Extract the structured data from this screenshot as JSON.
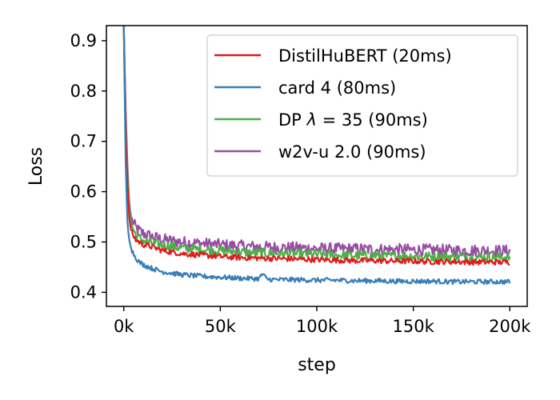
{
  "chart_data": {
    "type": "line",
    "xlabel": "step",
    "ylabel": "Loss",
    "xlim": [
      -9,
      209
    ],
    "ylim": [
      0.372,
      0.93
    ],
    "x_ticks": [
      0,
      50,
      100,
      150,
      200
    ],
    "x_tick_labels": [
      "0k",
      "50k",
      "100k",
      "150k",
      "200k"
    ],
    "y_ticks": [
      0.4,
      0.5,
      0.6,
      0.7,
      0.8,
      0.9
    ],
    "y_tick_labels": [
      "0.4",
      "0.5",
      "0.6",
      "0.7",
      "0.8",
      "0.9"
    ],
    "grid": false,
    "legend_position": "top-right",
    "legend_text_parts": [
      [
        {
          "t": "DistilHuBERT (20ms)",
          "i": false
        }
      ],
      [
        {
          "t": "card 4 (80ms)",
          "i": false
        }
      ],
      [
        {
          "t": "DP ",
          "i": false
        },
        {
          "t": "λ",
          "i": true
        },
        {
          "t": " = 35 (90ms)",
          "i": false
        }
      ],
      [
        {
          "t": "w2v-u 2.0 (90ms)",
          "i": false
        }
      ]
    ],
    "series": [
      {
        "name": "DistilHuBERT (20ms)",
        "color": "#e41a1c",
        "x": [
          0,
          1,
          2,
          3,
          4,
          6,
          8,
          10,
          15,
          20,
          25,
          30,
          40,
          50,
          60,
          70,
          80,
          90,
          100,
          110,
          120,
          130,
          140,
          150,
          160,
          170,
          180,
          190,
          200
        ],
        "y": [
          0.93,
          0.72,
          0.6,
          0.54,
          0.52,
          0.505,
          0.5,
          0.495,
          0.49,
          0.483,
          0.48,
          0.477,
          0.474,
          0.471,
          0.469,
          0.468,
          0.467,
          0.466,
          0.465,
          0.464,
          0.463,
          0.463,
          0.462,
          0.462,
          0.461,
          0.461,
          0.46,
          0.46,
          0.46
        ]
      },
      {
        "name": "card 4 (80ms)",
        "color": "#377eb8",
        "x": [
          0,
          1,
          2,
          3,
          4,
          6,
          8,
          10,
          15,
          20,
          25,
          30,
          40,
          50,
          60,
          70,
          72,
          74,
          80,
          90,
          100,
          110,
          120,
          130,
          140,
          150,
          160,
          170,
          180,
          190,
          200
        ],
        "y": [
          0.93,
          0.65,
          0.53,
          0.5,
          0.485,
          0.47,
          0.46,
          0.455,
          0.447,
          0.441,
          0.438,
          0.435,
          0.432,
          0.43,
          0.428,
          0.427,
          0.437,
          0.426,
          0.425,
          0.425,
          0.424,
          0.424,
          0.423,
          0.423,
          0.422,
          0.422,
          0.422,
          0.421,
          0.421,
          0.421,
          0.421
        ]
      },
      {
        "name": "DP λ = 35 (90ms)",
        "color": "#4daf4a",
        "x": [
          0,
          1,
          2,
          3,
          4,
          6,
          8,
          10,
          15,
          20,
          25,
          30,
          40,
          50,
          60,
          70,
          80,
          90,
          100,
          110,
          120,
          130,
          140,
          150,
          160,
          170,
          180,
          190,
          200
        ],
        "y": [
          0.93,
          0.74,
          0.62,
          0.56,
          0.535,
          0.515,
          0.508,
          0.503,
          0.497,
          0.494,
          0.491,
          0.488,
          0.485,
          0.483,
          0.48,
          0.478,
          0.477,
          0.476,
          0.475,
          0.474,
          0.473,
          0.473,
          0.472,
          0.472,
          0.471,
          0.471,
          0.47,
          0.47,
          0.47
        ]
      },
      {
        "name": "w2v-u 2.0 (90ms)",
        "color": "#984ea3",
        "x": [
          0,
          1,
          2,
          3,
          4,
          6,
          8,
          10,
          15,
          20,
          25,
          30,
          40,
          50,
          60,
          70,
          80,
          90,
          100,
          110,
          120,
          130,
          140,
          150,
          160,
          170,
          180,
          190,
          200
        ],
        "y": [
          0.93,
          0.76,
          0.64,
          0.57,
          0.545,
          0.53,
          0.522,
          0.517,
          0.51,
          0.505,
          0.502,
          0.5,
          0.497,
          0.494,
          0.492,
          0.49,
          0.489,
          0.488,
          0.487,
          0.486,
          0.486,
          0.485,
          0.485,
          0.484,
          0.484,
          0.483,
          0.483,
          0.483,
          0.482
        ]
      }
    ]
  }
}
